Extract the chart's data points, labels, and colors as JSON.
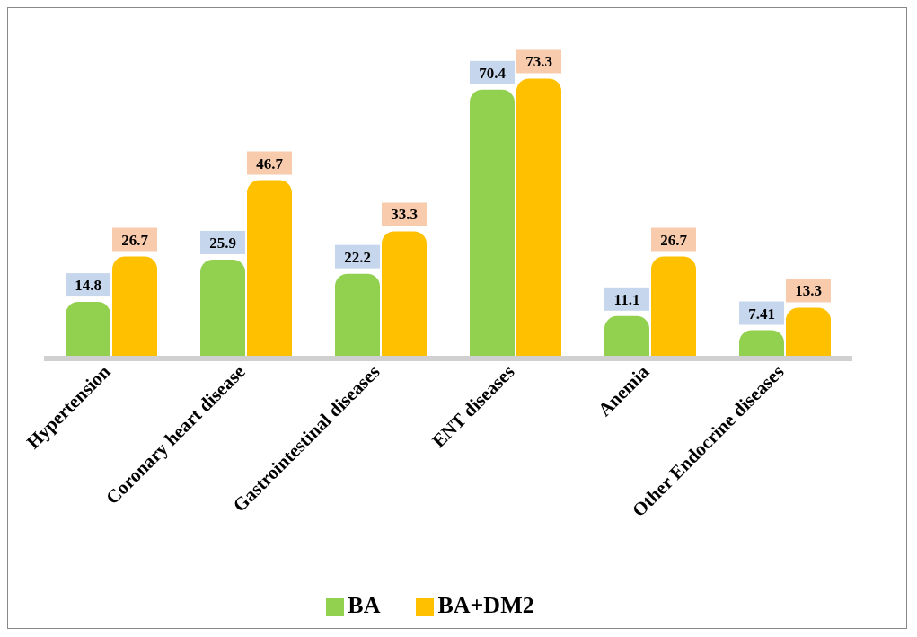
{
  "chart_data": {
    "type": "bar",
    "categories": [
      "Hypertension",
      "Coronary heart disease",
      "Gastrointestinal diseases",
      "ENT diseases",
      "Anemia",
      "Other Endocrine diseases"
    ],
    "series": [
      {
        "name": "BA",
        "color": "#92d050",
        "values": [
          14.8,
          25.9,
          22.2,
          70.4,
          11.1,
          7.41
        ]
      },
      {
        "name": "BA+DM2",
        "color": "#ffc000",
        "values": [
          26.7,
          46.7,
          33.3,
          73.3,
          26.7,
          13.3
        ]
      }
    ],
    "data_labels": true,
    "legend": "bottom",
    "grid": false
  }
}
